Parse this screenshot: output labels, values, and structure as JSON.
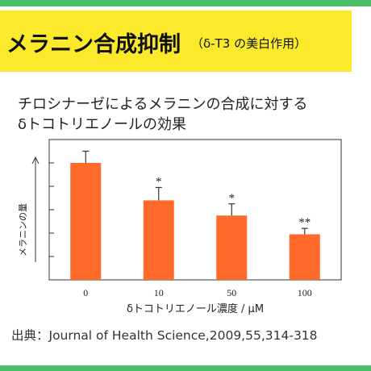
{
  "banner": {
    "title": "メラニン合成抑制",
    "subtitle": "（δ-T3 の美白作用）"
  },
  "description": {
    "line1": "チロシナーゼによるメラニンの合成に対する",
    "line2": "δトコトリエノールの効果"
  },
  "chart_data": {
    "type": "bar",
    "categories": [
      "0",
      "10",
      "50",
      "100"
    ],
    "values": [
      100,
      68,
      55,
      39
    ],
    "errors": [
      10,
      11,
      10,
      5
    ],
    "significance": [
      "",
      "*",
      "*",
      "**"
    ],
    "xlabel": "δトコトリエノール濃度 / μM",
    "ylabel": "メラニンの量",
    "ylim": [
      0,
      120
    ],
    "yticks": [
      20,
      40,
      60,
      80,
      100
    ],
    "bar_color": "#ff6a2a",
    "grid": false,
    "ylabel_arrow": "up"
  },
  "source": {
    "text": "出典：Journal of Health Science,2009,55,314-318"
  },
  "colors": {
    "banner": "#fbe92c",
    "stripe": "#4cbf6a",
    "bar": "#ff6a2a"
  }
}
